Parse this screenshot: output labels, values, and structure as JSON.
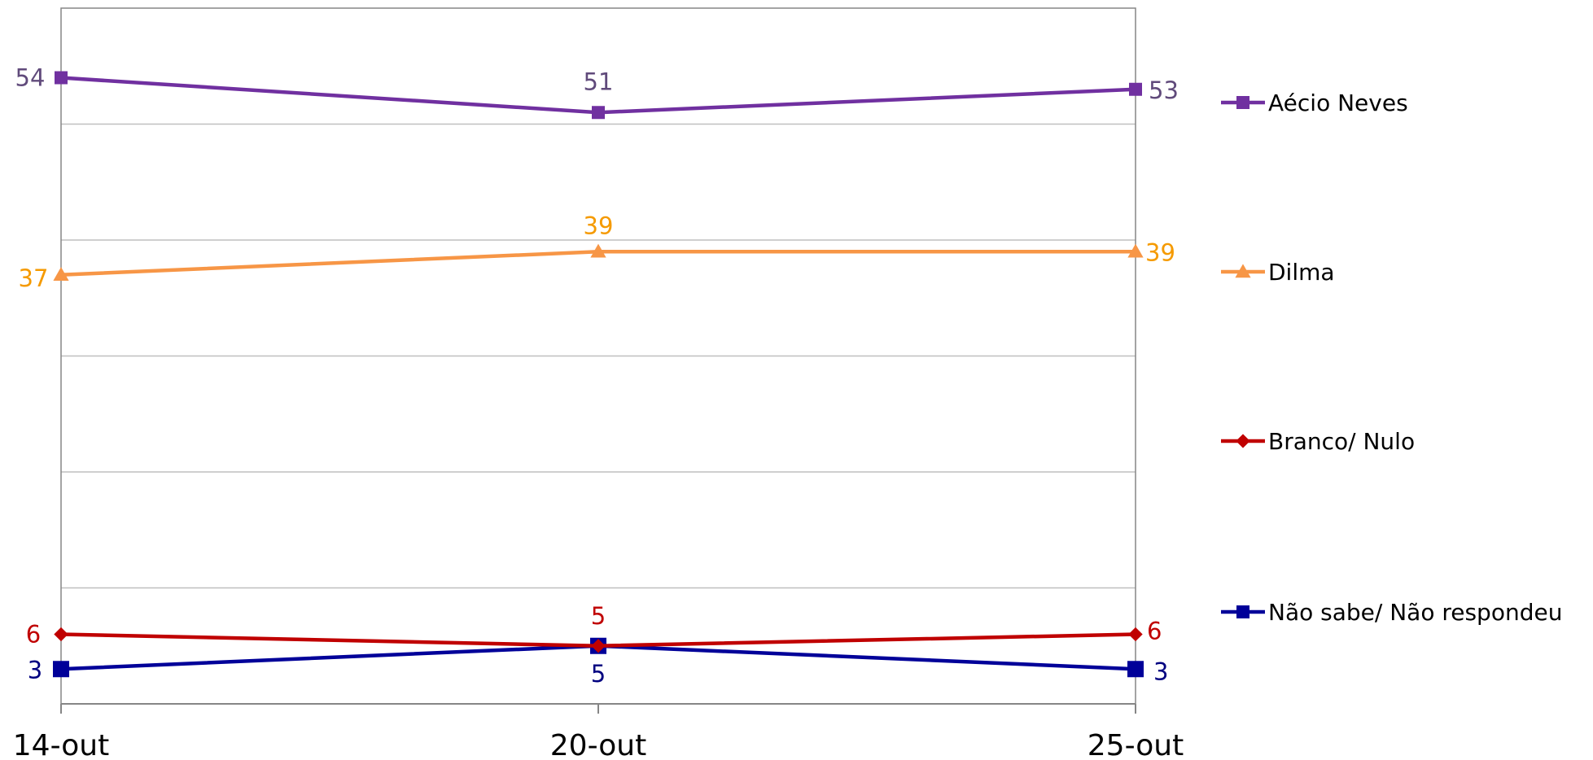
{
  "chart_data": {
    "type": "line",
    "categories": [
      "14-out",
      "20-out",
      "25-out"
    ],
    "ylim": [
      0,
      60
    ],
    "grid": true,
    "legend_position": "right",
    "series": [
      {
        "name": "Aécio Neves",
        "values": [
          54,
          51,
          53
        ],
        "color": "#7030A0",
        "label_color": "#604A7B",
        "marker": "square"
      },
      {
        "name": "Dilma",
        "values": [
          37,
          39,
          39
        ],
        "color": "#F79646",
        "label_color": "#F59A00",
        "marker": "triangle"
      },
      {
        "name": "Branco/ Nulo",
        "values": [
          6,
          5,
          6
        ],
        "color": "#C00000",
        "label_color": "#C00000",
        "marker": "diamond"
      },
      {
        "name": "Não sabe/ Não respondeu",
        "values": [
          3,
          5,
          3
        ],
        "color": "#000099",
        "label_color": "#000080",
        "marker": "square"
      }
    ]
  }
}
